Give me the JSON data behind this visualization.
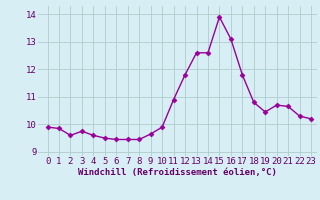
{
  "x": [
    0,
    1,
    2,
    3,
    4,
    5,
    6,
    7,
    8,
    9,
    10,
    11,
    12,
    13,
    14,
    15,
    16,
    17,
    18,
    19,
    20,
    21,
    22,
    23
  ],
  "y": [
    9.9,
    9.85,
    9.6,
    9.75,
    9.6,
    9.5,
    9.45,
    9.45,
    9.45,
    9.65,
    9.9,
    10.9,
    11.8,
    12.6,
    12.6,
    13.9,
    13.1,
    11.8,
    10.8,
    10.45,
    10.7,
    10.65,
    10.3,
    10.2
  ],
  "line_color": "#990099",
  "marker": "D",
  "markersize": 2.5,
  "linewidth": 1.0,
  "xlabel": "Windchill (Refroidissement éolien,°C)",
  "xlabel_fontsize": 6.5,
  "xtick_labels": [
    "0",
    "1",
    "2",
    "3",
    "4",
    "5",
    "6",
    "7",
    "8",
    "9",
    "10",
    "11",
    "12",
    "13",
    "14",
    "15",
    "16",
    "17",
    "18",
    "19",
    "20",
    "21",
    "22",
    "23"
  ],
  "ylim": [
    8.85,
    14.3
  ],
  "yticks": [
    9,
    10,
    11,
    12,
    13,
    14
  ],
  "background_color": "#d7eef5",
  "grid_color": "#b0cccc",
  "tick_fontsize": 6.5
}
